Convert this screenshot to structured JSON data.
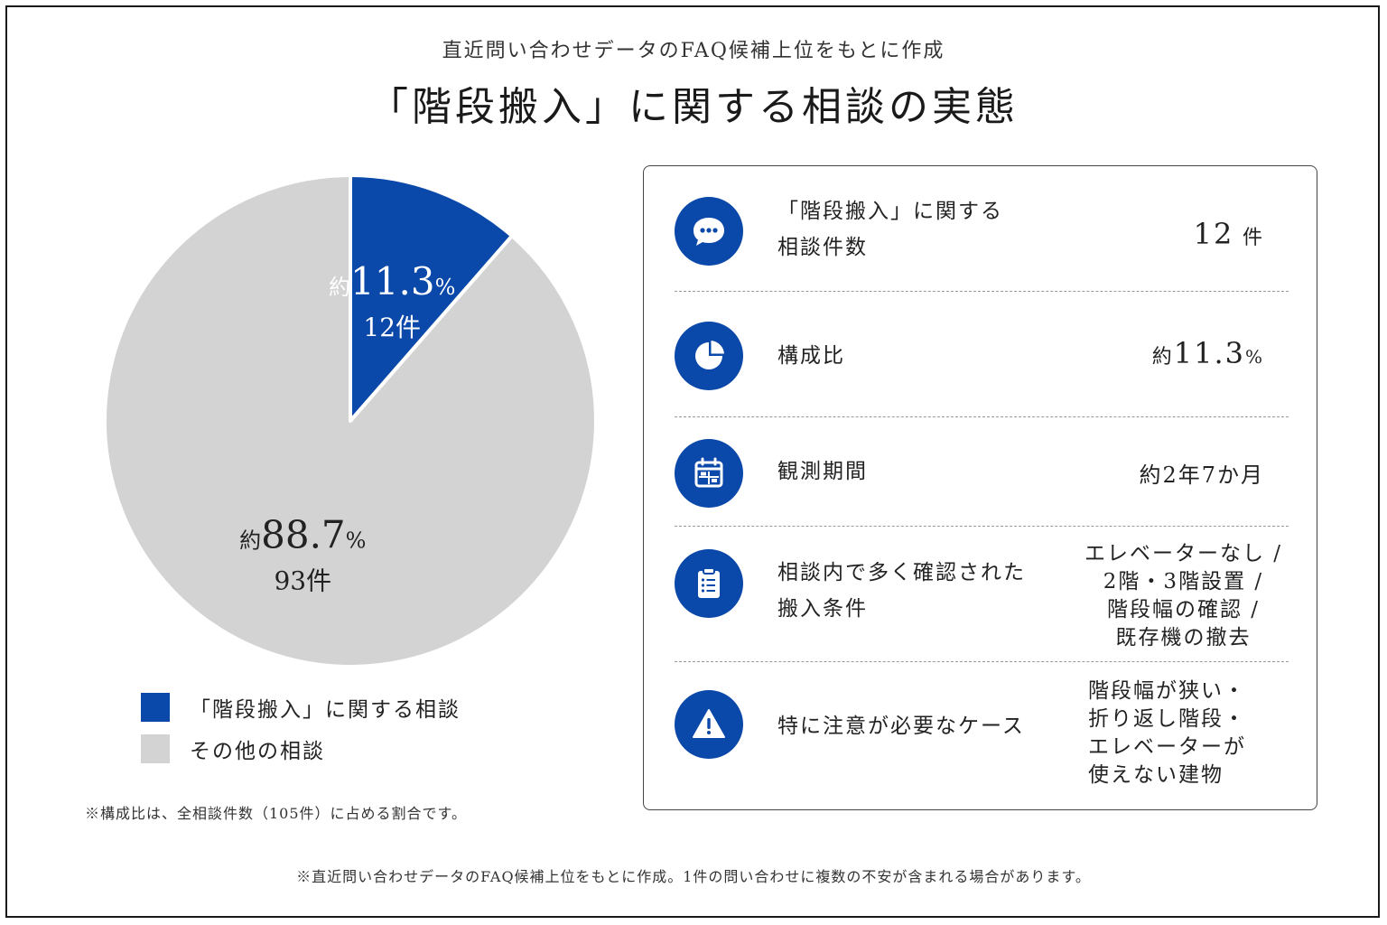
{
  "header": {
    "subtitle": "直近問い合わせデータのFAQ候補上位をもとに作成",
    "title": "「階段搬入」に関する相談の実態"
  },
  "colors": {
    "accent": "#0a48a9",
    "other": "#d3d3d3"
  },
  "chart_data": {
    "type": "pie",
    "total": 105,
    "slices": [
      {
        "name": "「階段搬入」に関する相談",
        "count": 12,
        "percent": 11.3,
        "prefix": "約",
        "pct_text": "11.3",
        "pct_unit": "%",
        "count_label": "12件",
        "color": "#0a48a9"
      },
      {
        "name": "その他の相談",
        "count": 93,
        "percent": 88.7,
        "prefix": "約",
        "pct_text": "88.7",
        "pct_unit": "%",
        "count_label": "93件",
        "color": "#d3d3d3"
      }
    ],
    "legend": [
      {
        "label": "「階段搬入」に関する相談",
        "color": "#0a48a9"
      },
      {
        "label": "その他の相談",
        "color": "#d3d3d3"
      }
    ]
  },
  "notes": {
    "composition": "※構成比は、全相談件数（105件）に占める割合です。",
    "bottom": "※直近問い合わせデータのFAQ候補上位をもとに作成。1件の問い合わせに複数の不安が含まれる場合があります。"
  },
  "panel": {
    "rows": [
      {
        "icon": "chat-bubble-icon",
        "label_lines": [
          "「階段搬入」に関する",
          "相談件数"
        ],
        "value_num": "12",
        "value_unit": "件"
      },
      {
        "icon": "pie-chart-icon",
        "label_lines": [
          "構成比"
        ],
        "value_prefix": "約",
        "value_num": "11.3",
        "value_unit": "%"
      },
      {
        "icon": "calendar-icon",
        "label_lines": [
          "観測期間"
        ],
        "value_text": "約2年7か月"
      },
      {
        "icon": "clipboard-list-icon",
        "label_lines": [
          "相談内で多く確認された",
          "搬入条件"
        ],
        "value_lines": [
          "エレベーターなし /",
          "2階・3階設置 /",
          "階段幅の確認 /",
          "既存機の撤去"
        ]
      },
      {
        "icon": "warning-icon",
        "label_lines": [
          "特に注意が必要なケース"
        ],
        "value_lines": [
          "階段幅が狭い・",
          "折り返し階段・",
          "エレベーターが",
          "使えない建物"
        ]
      }
    ]
  }
}
